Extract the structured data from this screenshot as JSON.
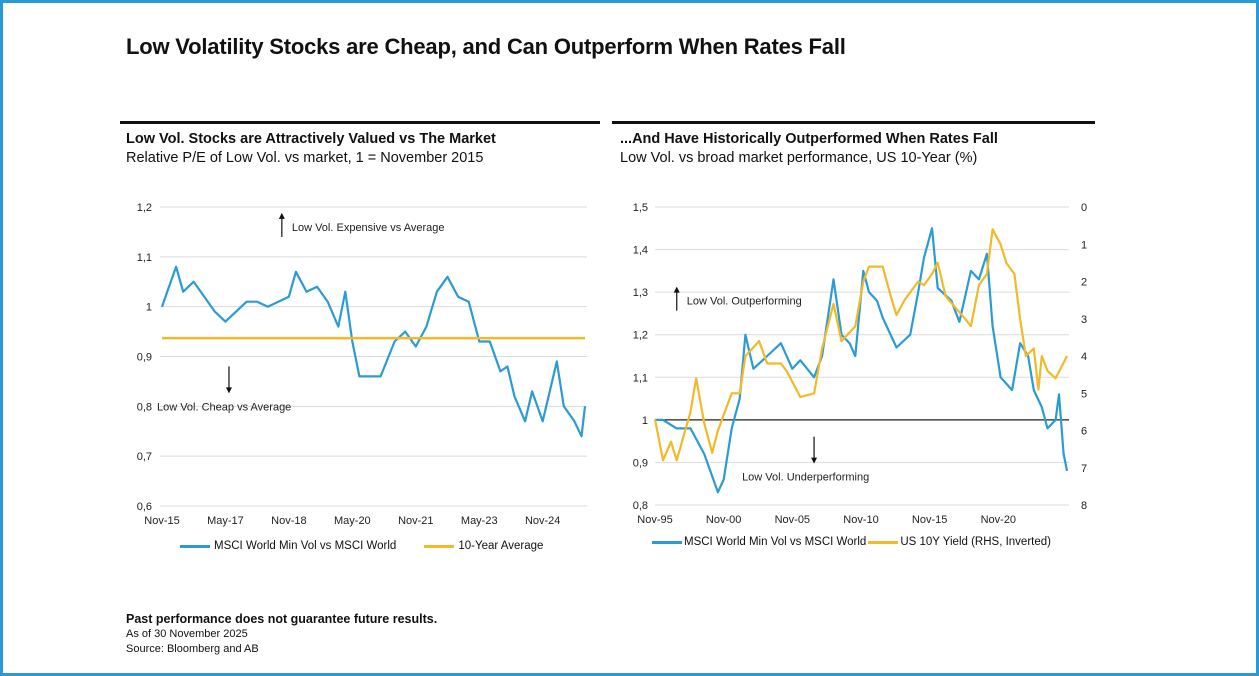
{
  "title": "Low Volatility Stocks are Cheap, and Can Outperform When Rates Fall",
  "colors": {
    "blue": "#2b9bd3",
    "gold": "#f2b928",
    "border": "#2a9ad6"
  },
  "footer": {
    "disclaimer": "Past performance does not guarantee future results.",
    "as_of": "As of 30 November 2025",
    "source": "Source: Bloomberg and AB"
  },
  "chart_data": [
    {
      "type": "line",
      "title": "Low Vol. Stocks are Attractively Valued vs The Market",
      "subtitle": "Relative P/E of Low Vol. vs market, 1 = November 2015",
      "x_ticks": [
        "Nov-15",
        "May-17",
        "Nov-18",
        "May-20",
        "Nov-21",
        "May-23",
        "Nov-24"
      ],
      "x_tick_dates": [
        "2015-11",
        "2017-05",
        "2018-11",
        "2020-05",
        "2021-11",
        "2023-05",
        "2024-11"
      ],
      "xlim": [
        "2015-11",
        "2025-11"
      ],
      "ylim": [
        0.6,
        1.2
      ],
      "y_ticks": [
        "0,6",
        "0,7",
        "0,8",
        "0,9",
        "1",
        "1,1",
        "1,2"
      ],
      "grid": true,
      "legend_placement": "bottom",
      "annotations": [
        {
          "text": "Low Vol. Expensive vs Average",
          "arrow": "up",
          "x": "2018-09",
          "y": 1.16
        },
        {
          "text": "Low Vol. Cheap vs Average",
          "arrow": "down",
          "x": "2017-06",
          "y": 0.82
        }
      ],
      "series": [
        {
          "name": "MSCI World Min Vol vs MSCI World",
          "color": "#2b9bd3",
          "points": [
            [
              "2015-11",
              1.0
            ],
            [
              "2016-01",
              1.04
            ],
            [
              "2016-03",
              1.08
            ],
            [
              "2016-05",
              1.03
            ],
            [
              "2016-08",
              1.05
            ],
            [
              "2016-11",
              1.02
            ],
            [
              "2017-02",
              0.99
            ],
            [
              "2017-05",
              0.97
            ],
            [
              "2017-08",
              0.99
            ],
            [
              "2017-11",
              1.01
            ],
            [
              "2018-02",
              1.01
            ],
            [
              "2018-05",
              1.0
            ],
            [
              "2018-08",
              1.01
            ],
            [
              "2018-11",
              1.02
            ],
            [
              "2019-01",
              1.07
            ],
            [
              "2019-04",
              1.03
            ],
            [
              "2019-07",
              1.04
            ],
            [
              "2019-10",
              1.01
            ],
            [
              "2020-01",
              0.96
            ],
            [
              "2020-03",
              1.03
            ],
            [
              "2020-05",
              0.93
            ],
            [
              "2020-07",
              0.86
            ],
            [
              "2020-10",
              0.86
            ],
            [
              "2021-01",
              0.86
            ],
            [
              "2021-05",
              0.93
            ],
            [
              "2021-08",
              0.95
            ],
            [
              "2021-11",
              0.92
            ],
            [
              "2022-02",
              0.96
            ],
            [
              "2022-05",
              1.03
            ],
            [
              "2022-08",
              1.06
            ],
            [
              "2022-11",
              1.02
            ],
            [
              "2023-02",
              1.01
            ],
            [
              "2023-05",
              0.93
            ],
            [
              "2023-08",
              0.93
            ],
            [
              "2023-11",
              0.87
            ],
            [
              "2024-01",
              0.88
            ],
            [
              "2024-03",
              0.82
            ],
            [
              "2024-06",
              0.77
            ],
            [
              "2024-08",
              0.83
            ],
            [
              "2024-11",
              0.77
            ],
            [
              "2025-03",
              0.89
            ],
            [
              "2025-05",
              0.8
            ],
            [
              "2025-08",
              0.77
            ],
            [
              "2025-10",
              0.74
            ],
            [
              "2025-11",
              0.8
            ]
          ]
        },
        {
          "name": "10-Year Average",
          "color": "#f2b928",
          "points": [
            [
              "2015-11",
              0.937
            ],
            [
              "2025-11",
              0.937
            ]
          ]
        }
      ]
    },
    {
      "type": "line",
      "title": "...And Have Historically Outperformed When Rates Fall",
      "subtitle": "Low Vol. vs broad market performance, US 10-Year (%)",
      "x_ticks": [
        "Nov-95",
        "Nov-00",
        "Nov-05",
        "Nov-10",
        "Nov-15",
        "Nov-20"
      ],
      "x_tick_dates": [
        "1995-11",
        "2000-11",
        "2005-11",
        "2010-11",
        "2015-11",
        "2020-11"
      ],
      "xlim": [
        "1995-11",
        "2025-11"
      ],
      "ylim": [
        0.8,
        1.5
      ],
      "y_ticks": [
        "0,8",
        "0,9",
        "1",
        "1,1",
        "1,2",
        "1,3",
        "1,4",
        "1,5"
      ],
      "y2lim": [
        8,
        0
      ],
      "y2_ticks": [
        "8",
        "7",
        "6",
        "5",
        "4",
        "3",
        "2",
        "1",
        "0"
      ],
      "y2_inverted": true,
      "reference_line": 1.0,
      "grid": true,
      "legend_placement": "bottom",
      "annotations": [
        {
          "text": "Low Vol. Outperforming",
          "arrow": "up",
          "x": "1997-06",
          "y": 1.28
        },
        {
          "text": "Low Vol. Underperforming",
          "arrow": "down",
          "x": "2007-06",
          "y": 0.89
        }
      ],
      "series": [
        {
          "name": "MSCI World Min Vol vs MSCI World",
          "axis": "left",
          "color": "#2b9bd3",
          "points": [
            [
              "1995-11",
              1.0
            ],
            [
              "1996-06",
              1.0
            ],
            [
              "1997-06",
              0.98
            ],
            [
              "1998-06",
              0.98
            ],
            [
              "1999-06",
              0.92
            ],
            [
              "2000-06",
              0.83
            ],
            [
              "2000-11",
              0.86
            ],
            [
              "2001-06",
              0.98
            ],
            [
              "2002-01",
              1.05
            ],
            [
              "2002-06",
              1.2
            ],
            [
              "2003-01",
              1.12
            ],
            [
              "2004-01",
              1.15
            ],
            [
              "2005-01",
              1.18
            ],
            [
              "2005-11",
              1.12
            ],
            [
              "2006-06",
              1.14
            ],
            [
              "2007-06",
              1.1
            ],
            [
              "2008-01",
              1.15
            ],
            [
              "2008-11",
              1.33
            ],
            [
              "2009-06",
              1.2
            ],
            [
              "2010-01",
              1.18
            ],
            [
              "2010-06",
              1.15
            ],
            [
              "2011-01",
              1.35
            ],
            [
              "2011-06",
              1.3
            ],
            [
              "2012-01",
              1.28
            ],
            [
              "2012-06",
              1.24
            ],
            [
              "2013-06",
              1.17
            ],
            [
              "2014-06",
              1.2
            ],
            [
              "2015-01",
              1.3
            ],
            [
              "2015-06",
              1.38
            ],
            [
              "2016-01",
              1.45
            ],
            [
              "2016-06",
              1.31
            ],
            [
              "2017-06",
              1.28
            ],
            [
              "2018-01",
              1.23
            ],
            [
              "2018-11",
              1.35
            ],
            [
              "2019-06",
              1.33
            ],
            [
              "2020-01",
              1.39
            ],
            [
              "2020-06",
              1.22
            ],
            [
              "2021-01",
              1.1
            ],
            [
              "2021-11",
              1.07
            ],
            [
              "2022-06",
              1.18
            ],
            [
              "2023-01",
              1.15
            ],
            [
              "2023-06",
              1.07
            ],
            [
              "2024-01",
              1.03
            ],
            [
              "2024-06",
              0.98
            ],
            [
              "2025-01",
              1.0
            ],
            [
              "2025-04",
              1.06
            ],
            [
              "2025-08",
              0.92
            ],
            [
              "2025-11",
              0.88
            ]
          ]
        },
        {
          "name": "US 10Y Yield (RHS, Inverted)",
          "axis": "right",
          "color": "#f2b928",
          "points": [
            [
              "1995-11",
              5.7
            ],
            [
              "1996-06",
              6.8
            ],
            [
              "1997-01",
              6.3
            ],
            [
              "1997-06",
              6.8
            ],
            [
              "1998-06",
              5.5
            ],
            [
              "1998-11",
              4.6
            ],
            [
              "1999-06",
              5.8
            ],
            [
              "2000-01",
              6.6
            ],
            [
              "2000-06",
              6.0
            ],
            [
              "2001-06",
              5.0
            ],
            [
              "2002-01",
              5.0
            ],
            [
              "2002-06",
              4.0
            ],
            [
              "2003-06",
              3.6
            ],
            [
              "2004-01",
              4.2
            ],
            [
              "2005-01",
              4.2
            ],
            [
              "2005-06",
              4.4
            ],
            [
              "2006-06",
              5.1
            ],
            [
              "2007-06",
              5.0
            ],
            [
              "2008-01",
              3.8
            ],
            [
              "2008-11",
              2.6
            ],
            [
              "2009-06",
              3.6
            ],
            [
              "2010-06",
              3.2
            ],
            [
              "2011-01",
              2.0
            ],
            [
              "2011-06",
              1.6
            ],
            [
              "2012-06",
              1.6
            ],
            [
              "2013-01",
              2.4
            ],
            [
              "2013-06",
              2.9
            ],
            [
              "2014-01",
              2.5
            ],
            [
              "2015-01",
              2.0
            ],
            [
              "2015-06",
              2.1
            ],
            [
              "2016-01",
              1.8
            ],
            [
              "2016-06",
              1.5
            ],
            [
              "2017-01",
              2.4
            ],
            [
              "2018-06",
              3.0
            ],
            [
              "2018-11",
              3.2
            ],
            [
              "2019-06",
              2.1
            ],
            [
              "2020-01",
              1.8
            ],
            [
              "2020-06",
              0.6
            ],
            [
              "2021-01",
              1.0
            ],
            [
              "2021-06",
              1.5
            ],
            [
              "2022-01",
              1.8
            ],
            [
              "2022-06",
              3.0
            ],
            [
              "2022-11",
              4.0
            ],
            [
              "2023-06",
              3.8
            ],
            [
              "2023-10",
              4.9
            ],
            [
              "2024-01",
              4.0
            ],
            [
              "2024-06",
              4.4
            ],
            [
              "2025-01",
              4.6
            ],
            [
              "2025-06",
              4.3
            ],
            [
              "2025-11",
              4.0
            ]
          ]
        }
      ]
    }
  ]
}
